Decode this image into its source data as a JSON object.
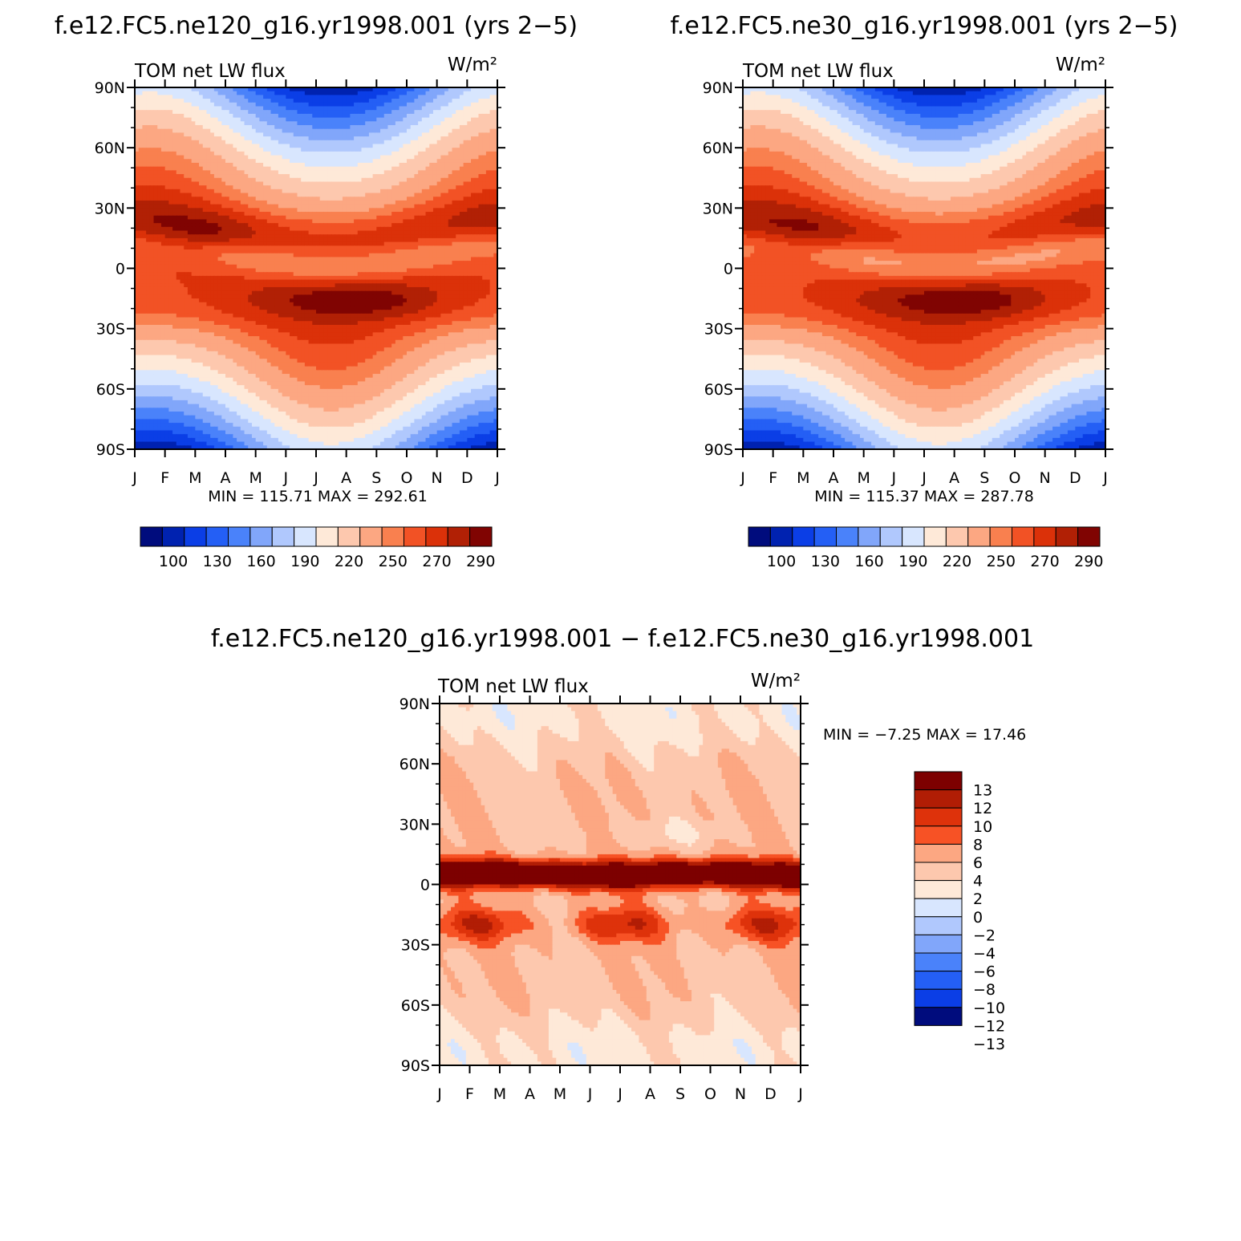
{
  "colors": {
    "abs_palette": [
      "#000c7d",
      "#0022b0",
      "#0b3ee6",
      "#245ff5",
      "#4a82fa",
      "#81a6fa",
      "#b0c8fd",
      "#d8e6fe",
      "#fee9d8",
      "#fdc8ae",
      "#fca782",
      "#f9804f",
      "#f25225",
      "#db3109",
      "#b12005",
      "#800402"
    ],
    "diff_palette": [
      "#7d0000",
      "#b11d05",
      "#de320b",
      "#f75225",
      "#fca782",
      "#fdc8ae",
      "#fee9d8",
      "#d8e6fe",
      "#b0c8fd",
      "#81a6fa",
      "#4a82fa",
      "#245ff5",
      "#0b3ee6",
      "#000c7d"
    ]
  },
  "chart_data": [
    {
      "type": "heatmap",
      "title": "f.e12.FC5.ne120_g16.yr1998.001 (yrs 2−5)",
      "left_label": "TOM net LW flux",
      "right_label": "W/m²",
      "xlabels": [
        "J",
        "F",
        "M",
        "A",
        "M",
        "J",
        "J",
        "A",
        "S",
        "O",
        "N",
        "D",
        "J"
      ],
      "ylabels": [
        "90N",
        "60N",
        "30N",
        "0",
        "30S",
        "60S",
        "90S"
      ],
      "ylim": [
        -90,
        90
      ],
      "stats": "MIN = 115.71 MAX = 292.61",
      "colorbar_labels": [
        "100",
        "130",
        "160",
        "190",
        "220",
        "250",
        "270",
        "290"
      ],
      "kind": "abs",
      "anomaly": 0
    },
    {
      "type": "heatmap",
      "title": "f.e12.FC5.ne30_g16.yr1998.001 (yrs 2−5)",
      "left_label": "TOM net LW flux",
      "right_label": "W/m²",
      "xlabels": [
        "J",
        "F",
        "M",
        "A",
        "M",
        "J",
        "J",
        "A",
        "S",
        "O",
        "N",
        "D",
        "J"
      ],
      "ylabels": [
        "90N",
        "60N",
        "30N",
        "0",
        "30S",
        "60S",
        "90S"
      ],
      "ylim": [
        -90,
        90
      ],
      "stats": "MIN = 115.37 MAX = 287.78",
      "colorbar_labels": [
        "100",
        "130",
        "160",
        "190",
        "220",
        "250",
        "270",
        "290"
      ],
      "kind": "abs",
      "anomaly": 1
    },
    {
      "type": "heatmap",
      "title": "f.e12.FC5.ne120_g16.yr1998.001 − f.e12.FC5.ne30_g16.yr1998.001",
      "left_label": "TOM net LW flux",
      "right_label": "W/m²",
      "xlabels": [
        "J",
        "F",
        "M",
        "A",
        "M",
        "J",
        "J",
        "A",
        "S",
        "O",
        "N",
        "D",
        "J"
      ],
      "ylabels": [
        "90N",
        "60N",
        "30N",
        "0",
        "30S",
        "60S",
        "90S"
      ],
      "ylim": [
        -90,
        90
      ],
      "stats": "MIN =   −7.25 MAX =   17.46",
      "colorbar_labels": [
        "13",
        "12",
        "10",
        "8",
        "6",
        "4",
        "2",
        "0",
        "−2",
        "−4",
        "−6",
        "−8",
        "−10",
        "−12",
        "−13"
      ],
      "kind": "diff"
    }
  ]
}
